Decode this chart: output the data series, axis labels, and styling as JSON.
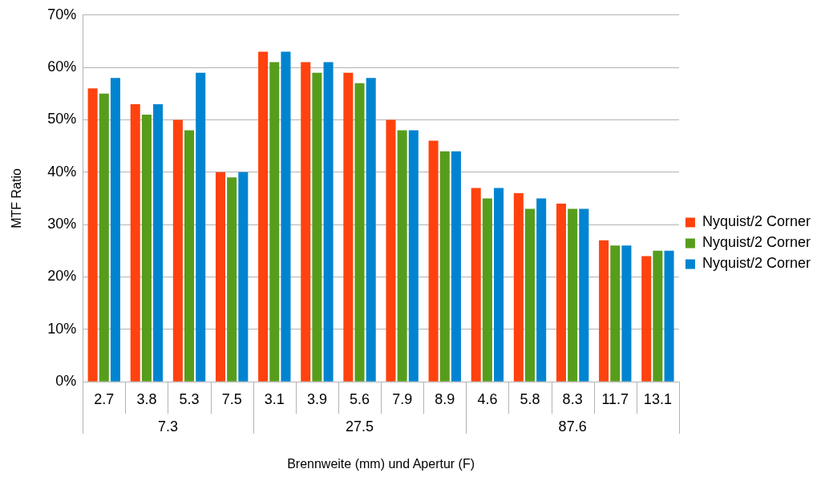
{
  "chart_data": {
    "type": "bar",
    "xlabel": "Brennweite (mm) und Apertur (F)",
    "ylabel": "MTF Ratio",
    "categories": [
      "2.7",
      "3.8",
      "5.3",
      "7.5",
      "3.1",
      "3.9",
      "5.6",
      "7.9",
      "8.9",
      "4.6",
      "5.8",
      "8.3",
      "11.7",
      "13.1"
    ],
    "series": [
      {
        "name": "Nyquist/2 Corner",
        "color": "#ff420e",
        "values": [
          56,
          53,
          50,
          40,
          63,
          61,
          59,
          50,
          46,
          37,
          36,
          34,
          27,
          24
        ]
      },
      {
        "name": "Nyquist/2 Corner",
        "color": "#579d1c",
        "values": [
          55,
          51,
          48,
          39,
          61,
          59,
          57,
          48,
          44,
          35,
          33,
          33,
          26,
          25
        ]
      },
      {
        "name": "Nyquist/2 Corner",
        "color": "#0084d1",
        "values": [
          58,
          53,
          59,
          40,
          63,
          61,
          58,
          48,
          44,
          37,
          35,
          33,
          26,
          25
        ]
      }
    ],
    "annotations": [
      "7.3",
      "27.5",
      "87.6"
    ],
    "ylim": [
      0,
      70
    ],
    "yticks": [
      {
        "value": 0,
        "label": "0%"
      },
      {
        "value": 10,
        "label": "10%"
      },
      {
        "value": 20,
        "label": "20%"
      },
      {
        "value": 30,
        "label": "30%"
      },
      {
        "value": 40,
        "label": "40%"
      },
      {
        "value": 50,
        "label": "50%"
      },
      {
        "value": 60,
        "label": "60%"
      },
      {
        "value": 70,
        "label": "70%"
      }
    ],
    "grid": "y",
    "legend": "right"
  }
}
